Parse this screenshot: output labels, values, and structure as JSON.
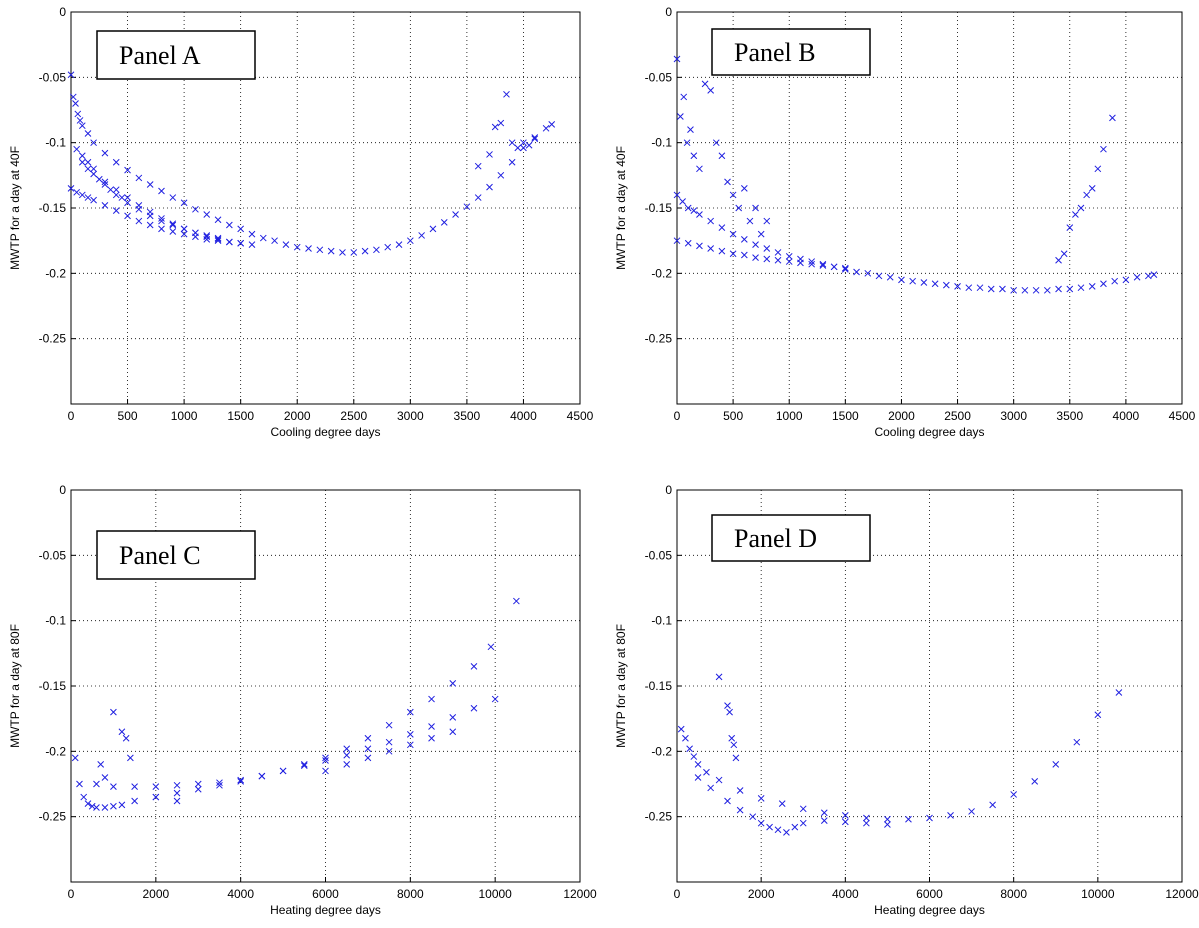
{
  "figure": {
    "marker_color": "#1f1fe0",
    "marker_symbol": "x",
    "grid": "dotted"
  },
  "chart_data": [
    {
      "type": "scatter",
      "panel_label": "Panel A",
      "xlabel": "Cooling degree days",
      "ylabel": "MWTP for a day at 40F",
      "xlim": [
        0,
        4500
      ],
      "ylim": [
        -0.3,
        0
      ],
      "xticks": [
        0,
        500,
        1000,
        1500,
        2000,
        2500,
        3000,
        3500,
        4000,
        4500
      ],
      "xtick_labels": [
        "0",
        "500",
        "1000",
        "1500",
        "2000",
        "2500",
        "3000",
        "3500",
        "4000",
        "4500"
      ],
      "yticks": [
        0,
        -0.05,
        -0.1,
        -0.15,
        -0.2,
        -0.25
      ],
      "ytick_labels": [
        "0",
        "-0.05",
        "-0.1",
        "-0.15",
        "-0.2",
        "-0.25"
      ],
      "grid": true,
      "series": [
        {
          "x": [
            0,
            20,
            40,
            60,
            80,
            100,
            150,
            200,
            300,
            400,
            500,
            600,
            700,
            800,
            900,
            1000,
            1100,
            1200,
            1300,
            1400,
            1500,
            1600,
            1700,
            1800,
            1900,
            2000,
            2100,
            2200,
            2300,
            2400,
            2500,
            2600,
            2700,
            2800,
            2900,
            3000,
            3100,
            3200,
            3300,
            3400,
            3500,
            3600,
            3700,
            3800,
            3900,
            4000,
            4100,
            4200,
            4250
          ],
          "y": [
            -0.048,
            -0.065,
            -0.07,
            -0.078,
            -0.083,
            -0.087,
            -0.093,
            -0.1,
            -0.108,
            -0.115,
            -0.121,
            -0.127,
            -0.132,
            -0.137,
            -0.142,
            -0.146,
            -0.151,
            -0.155,
            -0.159,
            -0.163,
            -0.166,
            -0.17,
            -0.173,
            -0.175,
            -0.178,
            -0.18,
            -0.181,
            -0.182,
            -0.183,
            -0.184,
            -0.184,
            -0.183,
            -0.182,
            -0.18,
            -0.178,
            -0.175,
            -0.171,
            -0.166,
            -0.161,
            -0.155,
            -0.149,
            -0.142,
            -0.134,
            -0.125,
            -0.115,
            -0.104,
            -0.096,
            -0.089,
            -0.086
          ]
        },
        {
          "x": [
            50,
            100,
            150,
            200,
            300,
            400,
            500,
            600,
            700,
            800,
            900,
            1000,
            1100,
            1200,
            1300,
            1400,
            1500,
            1600
          ],
          "y": [
            -0.105,
            -0.11,
            -0.115,
            -0.12,
            -0.13,
            -0.136,
            -0.142,
            -0.148,
            -0.153,
            -0.158,
            -0.162,
            -0.166,
            -0.169,
            -0.172,
            -0.174,
            -0.176,
            -0.177,
            -0.178
          ]
        },
        {
          "x": [
            0,
            50,
            100,
            150,
            200,
            300,
            400,
            500,
            600,
            700,
            800,
            900,
            1000,
            1100,
            1200,
            1300,
            1400,
            1500
          ],
          "y": [
            -0.135,
            -0.138,
            -0.14,
            -0.142,
            -0.144,
            -0.148,
            -0.152,
            -0.156,
            -0.16,
            -0.163,
            -0.166,
            -0.168,
            -0.17,
            -0.172,
            -0.174,
            -0.175,
            -0.176,
            -0.177
          ]
        },
        {
          "x": [
            100,
            150,
            200,
            250,
            300,
            350,
            400,
            450,
            500,
            600,
            700,
            800,
            900,
            1000,
            1100,
            1200,
            1300
          ],
          "y": [
            -0.115,
            -0.12,
            -0.124,
            -0.128,
            -0.132,
            -0.136,
            -0.14,
            -0.142,
            -0.146,
            -0.151,
            -0.156,
            -0.16,
            -0.163,
            -0.166,
            -0.169,
            -0.171,
            -0.173
          ]
        },
        {
          "x": [
            3600,
            3700,
            3750,
            3800,
            3850,
            3900,
            3950,
            4000,
            4050,
            4100
          ],
          "y": [
            -0.118,
            -0.109,
            -0.088,
            -0.085,
            -0.063,
            -0.1,
            -0.104,
            -0.1,
            -0.102,
            -0.097
          ]
        }
      ]
    },
    {
      "type": "scatter",
      "panel_label": "Panel B",
      "xlabel": "Cooling degree days",
      "ylabel": "MWTP for a day at 40F",
      "xlim": [
        0,
        4500
      ],
      "ylim": [
        -0.3,
        0
      ],
      "xticks": [
        0,
        500,
        1000,
        1500,
        2000,
        2500,
        3000,
        3500,
        4000,
        4500
      ],
      "xtick_labels": [
        "0",
        "500",
        "1000",
        "1500",
        "2000",
        "2500",
        "3000",
        "3500",
        "4000",
        "4500"
      ],
      "yticks": [
        0,
        -0.05,
        -0.1,
        -0.15,
        -0.2,
        -0.25
      ],
      "ytick_labels": [
        "0",
        "-0.05",
        "-0.1",
        "-0.15",
        "-0.2",
        "-0.25"
      ],
      "grid": true,
      "series": [
        {
          "x": [
            0,
            50,
            100,
            150,
            200,
            300,
            400,
            500,
            600,
            700,
            800,
            900,
            1000,
            1100,
            1200,
            1300,
            1400,
            1500,
            1600,
            1700,
            1800,
            1900,
            2000,
            2100,
            2200,
            2300,
            2400,
            2500,
            2600,
            2700,
            2800,
            2900,
            3000,
            3100,
            3200,
            3300,
            3400,
            3500,
            3600,
            3700,
            3800,
            3900,
            4000,
            4100,
            4200,
            4250
          ],
          "y": [
            -0.14,
            -0.145,
            -0.15,
            -0.152,
            -0.155,
            -0.16,
            -0.165,
            -0.17,
            -0.174,
            -0.178,
            -0.181,
            -0.184,
            -0.187,
            -0.189,
            -0.191,
            -0.193,
            -0.195,
            -0.197,
            -0.199,
            -0.2,
            -0.202,
            -0.203,
            -0.205,
            -0.206,
            -0.207,
            -0.208,
            -0.209,
            -0.21,
            -0.211,
            -0.211,
            -0.212,
            -0.212,
            -0.213,
            -0.213,
            -0.213,
            -0.213,
            -0.212,
            -0.212,
            -0.211,
            -0.21,
            -0.208,
            -0.206,
            -0.205,
            -0.203,
            -0.202,
            -0.201
          ]
        },
        {
          "x": [
            0,
            30,
            60,
            90,
            120,
            150,
            200,
            250,
            300,
            350,
            400,
            450,
            500,
            550,
            600,
            650,
            700,
            750,
            800
          ],
          "y": [
            -0.036,
            -0.08,
            -0.065,
            -0.1,
            -0.09,
            -0.11,
            -0.12,
            -0.055,
            -0.06,
            -0.1,
            -0.11,
            -0.13,
            -0.14,
            -0.15,
            -0.135,
            -0.16,
            -0.15,
            -0.17,
            -0.16
          ]
        },
        {
          "x": [
            0,
            100,
            200,
            300,
            400,
            500,
            600,
            700,
            800,
            900,
            1000,
            1100,
            1200,
            1300,
            1400,
            1500
          ],
          "y": [
            -0.175,
            -0.177,
            -0.179,
            -0.181,
            -0.183,
            -0.185,
            -0.186,
            -0.188,
            -0.189,
            -0.19,
            -0.191,
            -0.192,
            -0.193,
            -0.194,
            -0.195,
            -0.196
          ]
        },
        {
          "x": [
            3400,
            3450,
            3500,
            3550,
            3600,
            3650,
            3700,
            3750,
            3800,
            3880
          ],
          "y": [
            -0.19,
            -0.185,
            -0.165,
            -0.155,
            -0.15,
            -0.14,
            -0.135,
            -0.12,
            -0.105,
            -0.081
          ]
        }
      ]
    },
    {
      "type": "scatter",
      "panel_label": "Panel C",
      "xlabel": "Heating degree days",
      "ylabel": "MWTP for a day at 80F",
      "xlim": [
        0,
        12000
      ],
      "ylim": [
        -0.3,
        0
      ],
      "xticks": [
        0,
        2000,
        4000,
        6000,
        8000,
        10000,
        12000
      ],
      "xtick_labels": [
        "0",
        "2000",
        "4000",
        "6000",
        "8000",
        "10000",
        "12000"
      ],
      "yticks": [
        0,
        -0.05,
        -0.1,
        -0.15,
        -0.2,
        -0.25
      ],
      "ytick_labels": [
        "0",
        "-0.05",
        "-0.1",
        "-0.15",
        "-0.2",
        "-0.25"
      ],
      "grid": true,
      "series": [
        {
          "x": [
            100,
            200,
            300,
            400,
            500,
            600,
            800,
            1000,
            1200,
            1500,
            2000,
            2500,
            3000,
            3500,
            4000,
            4500,
            5000,
            5500,
            6000,
            6500,
            7000,
            7500,
            8000,
            8500,
            9000,
            9500,
            10000
          ],
          "y": [
            -0.205,
            -0.225,
            -0.235,
            -0.24,
            -0.242,
            -0.243,
            -0.243,
            -0.242,
            -0.241,
            -0.238,
            -0.235,
            -0.232,
            -0.229,
            -0.226,
            -0.223,
            -0.219,
            -0.215,
            -0.211,
            -0.207,
            -0.203,
            -0.198,
            -0.193,
            -0.187,
            -0.181,
            -0.174,
            -0.167,
            -0.16
          ]
        },
        {
          "x": [
            1000,
            1500,
            2000,
            2500,
            3000,
            3500,
            4000,
            4500,
            5000,
            5500,
            6000,
            6500,
            7000,
            7500,
            8000,
            8500,
            9000,
            9500,
            9900
          ],
          "y": [
            -0.227,
            -0.227,
            -0.227,
            -0.226,
            -0.225,
            -0.224,
            -0.222,
            -0.219,
            -0.215,
            -0.21,
            -0.205,
            -0.198,
            -0.19,
            -0.18,
            -0.17,
            -0.16,
            -0.148,
            -0.135,
            -0.12
          ]
        },
        {
          "x": [
            1000,
            1200,
            1300,
            1400,
            700,
            800,
            600,
            2000,
            2500,
            10500
          ],
          "y": [
            -0.17,
            -0.185,
            -0.19,
            -0.205,
            -0.21,
            -0.22,
            -0.225,
            -0.235,
            -0.238,
            -0.085
          ]
        },
        {
          "x": [
            6000,
            6500,
            7000,
            7500,
            8000,
            8500,
            9000
          ],
          "y": [
            -0.215,
            -0.21,
            -0.205,
            -0.2,
            -0.195,
            -0.19,
            -0.185
          ]
        }
      ]
    },
    {
      "type": "scatter",
      "panel_label": "Panel D",
      "xlabel": "Heating degree days",
      "ylabel": "MWTP for a day at 80F",
      "xlim": [
        0,
        12000
      ],
      "ylim": [
        -0.3,
        0
      ],
      "xticks": [
        0,
        2000,
        4000,
        6000,
        8000,
        10000,
        12000
      ],
      "xtick_labels": [
        "0",
        "2000",
        "4000",
        "6000",
        "8000",
        "10000",
        "12000"
      ],
      "yticks": [
        0,
        -0.05,
        -0.1,
        -0.15,
        -0.2,
        -0.25
      ],
      "ytick_labels": [
        "0",
        "-0.05",
        "-0.1",
        "-0.15",
        "-0.2",
        "-0.25"
      ],
      "grid": true,
      "series": [
        {
          "x": [
            100,
            200,
            300,
            400,
            500,
            700,
            1000,
            1500,
            2000,
            2500,
            3000,
            3500,
            4000,
            4500,
            5000,
            5500,
            6000,
            6500,
            7000,
            7500,
            8000,
            8500,
            9000,
            9500,
            10000
          ],
          "y": [
            -0.183,
            -0.19,
            -0.198,
            -0.204,
            -0.21,
            -0.216,
            -0.222,
            -0.23,
            -0.236,
            -0.24,
            -0.244,
            -0.247,
            -0.249,
            -0.251,
            -0.252,
            -0.252,
            -0.251,
            -0.249,
            -0.246,
            -0.241,
            -0.233,
            -0.223,
            -0.21,
            -0.193,
            -0.172
          ]
        },
        {
          "x": [
            500,
            800,
            1200,
            1500,
            1800,
            2000,
            2200,
            2400,
            2600,
            2800,
            3000,
            3500,
            4000,
            4500,
            5000
          ],
          "y": [
            -0.22,
            -0.228,
            -0.238,
            -0.245,
            -0.25,
            -0.255,
            -0.258,
            -0.26,
            -0.262,
            -0.258,
            -0.255,
            -0.253,
            -0.254,
            -0.255,
            -0.256
          ]
        },
        {
          "x": [
            1000,
            1200,
            1250,
            1300,
            1350,
            1400,
            10500
          ],
          "y": [
            -0.143,
            -0.165,
            -0.17,
            -0.19,
            -0.195,
            -0.205,
            -0.155
          ]
        }
      ]
    }
  ]
}
